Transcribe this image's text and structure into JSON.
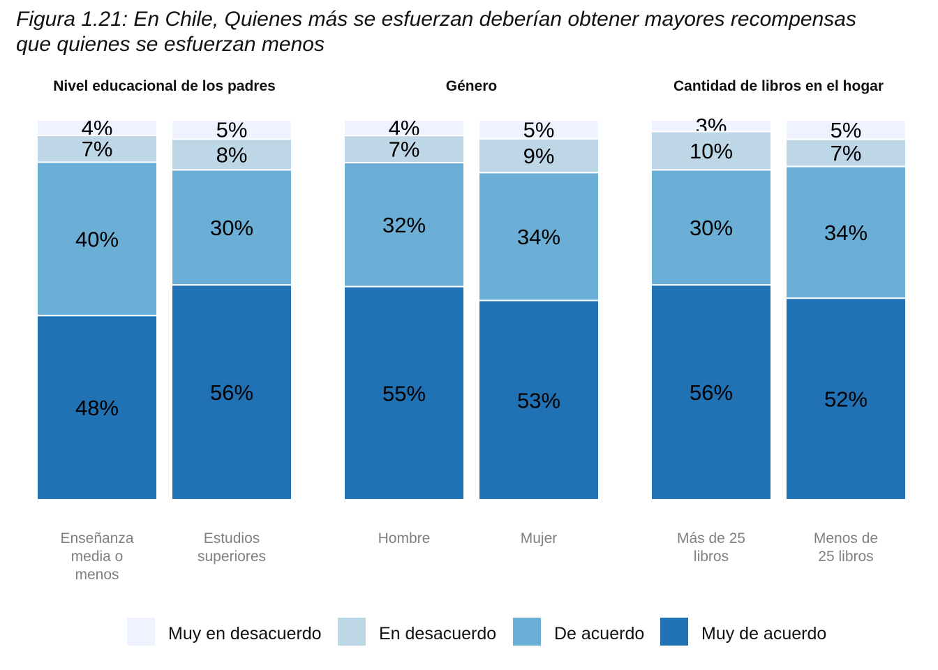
{
  "title_lines": [
    "Figura 1.21: En Chile, Quienes más se esfuerzan deberían obtener mayores recompensas",
    "que quienes se esfuerzan menos"
  ],
  "colors": {
    "Muy en desacuerdo": "#eff3ff",
    "En desacuerdo": "#bdd7e7",
    "De acuerdo": "#6baed6",
    "Muy de acuerdo": "#2171b5"
  },
  "chart_data": {
    "type": "bar",
    "stacked": true,
    "percent": true,
    "ylim": [
      0,
      100
    ],
    "grid": false,
    "legend_position": "bottom",
    "legend": [
      "Muy en desacuerdo",
      "En desacuerdo",
      "De acuerdo",
      "Muy de acuerdo"
    ],
    "panels": [
      {
        "title": "Nivel educacional de los padres",
        "categories": [
          {
            "label_lines": [
              "Enseñanza",
              "media o",
              "menos"
            ],
            "values": {
              "Muy en desacuerdo": 4,
              "En desacuerdo": 7,
              "De acuerdo": 40,
              "Muy de acuerdo": 48
            }
          },
          {
            "label_lines": [
              "Estudios",
              "superiores"
            ],
            "values": {
              "Muy en desacuerdo": 5,
              "En desacuerdo": 8,
              "De acuerdo": 30,
              "Muy de acuerdo": 56
            }
          }
        ]
      },
      {
        "title": "Género",
        "categories": [
          {
            "label_lines": [
              "Hombre"
            ],
            "values": {
              "Muy en desacuerdo": 4,
              "En desacuerdo": 7,
              "De acuerdo": 32,
              "Muy de acuerdo": 55
            }
          },
          {
            "label_lines": [
              "Mujer"
            ],
            "values": {
              "Muy en desacuerdo": 5,
              "En desacuerdo": 9,
              "De acuerdo": 34,
              "Muy de acuerdo": 53
            }
          }
        ]
      },
      {
        "title": "Cantidad de libros en el hogar",
        "categories": [
          {
            "label_lines": [
              "Más de 25",
              "libros"
            ],
            "values": {
              "Muy en desacuerdo": 3,
              "En desacuerdo": 10,
              "De acuerdo": 30,
              "Muy de acuerdo": 56
            }
          },
          {
            "label_lines": [
              "Menos de",
              "25 libros"
            ],
            "values": {
              "Muy en desacuerdo": 5,
              "En desacuerdo": 7,
              "De acuerdo": 34,
              "Muy de acuerdo": 52
            }
          }
        ]
      }
    ]
  }
}
